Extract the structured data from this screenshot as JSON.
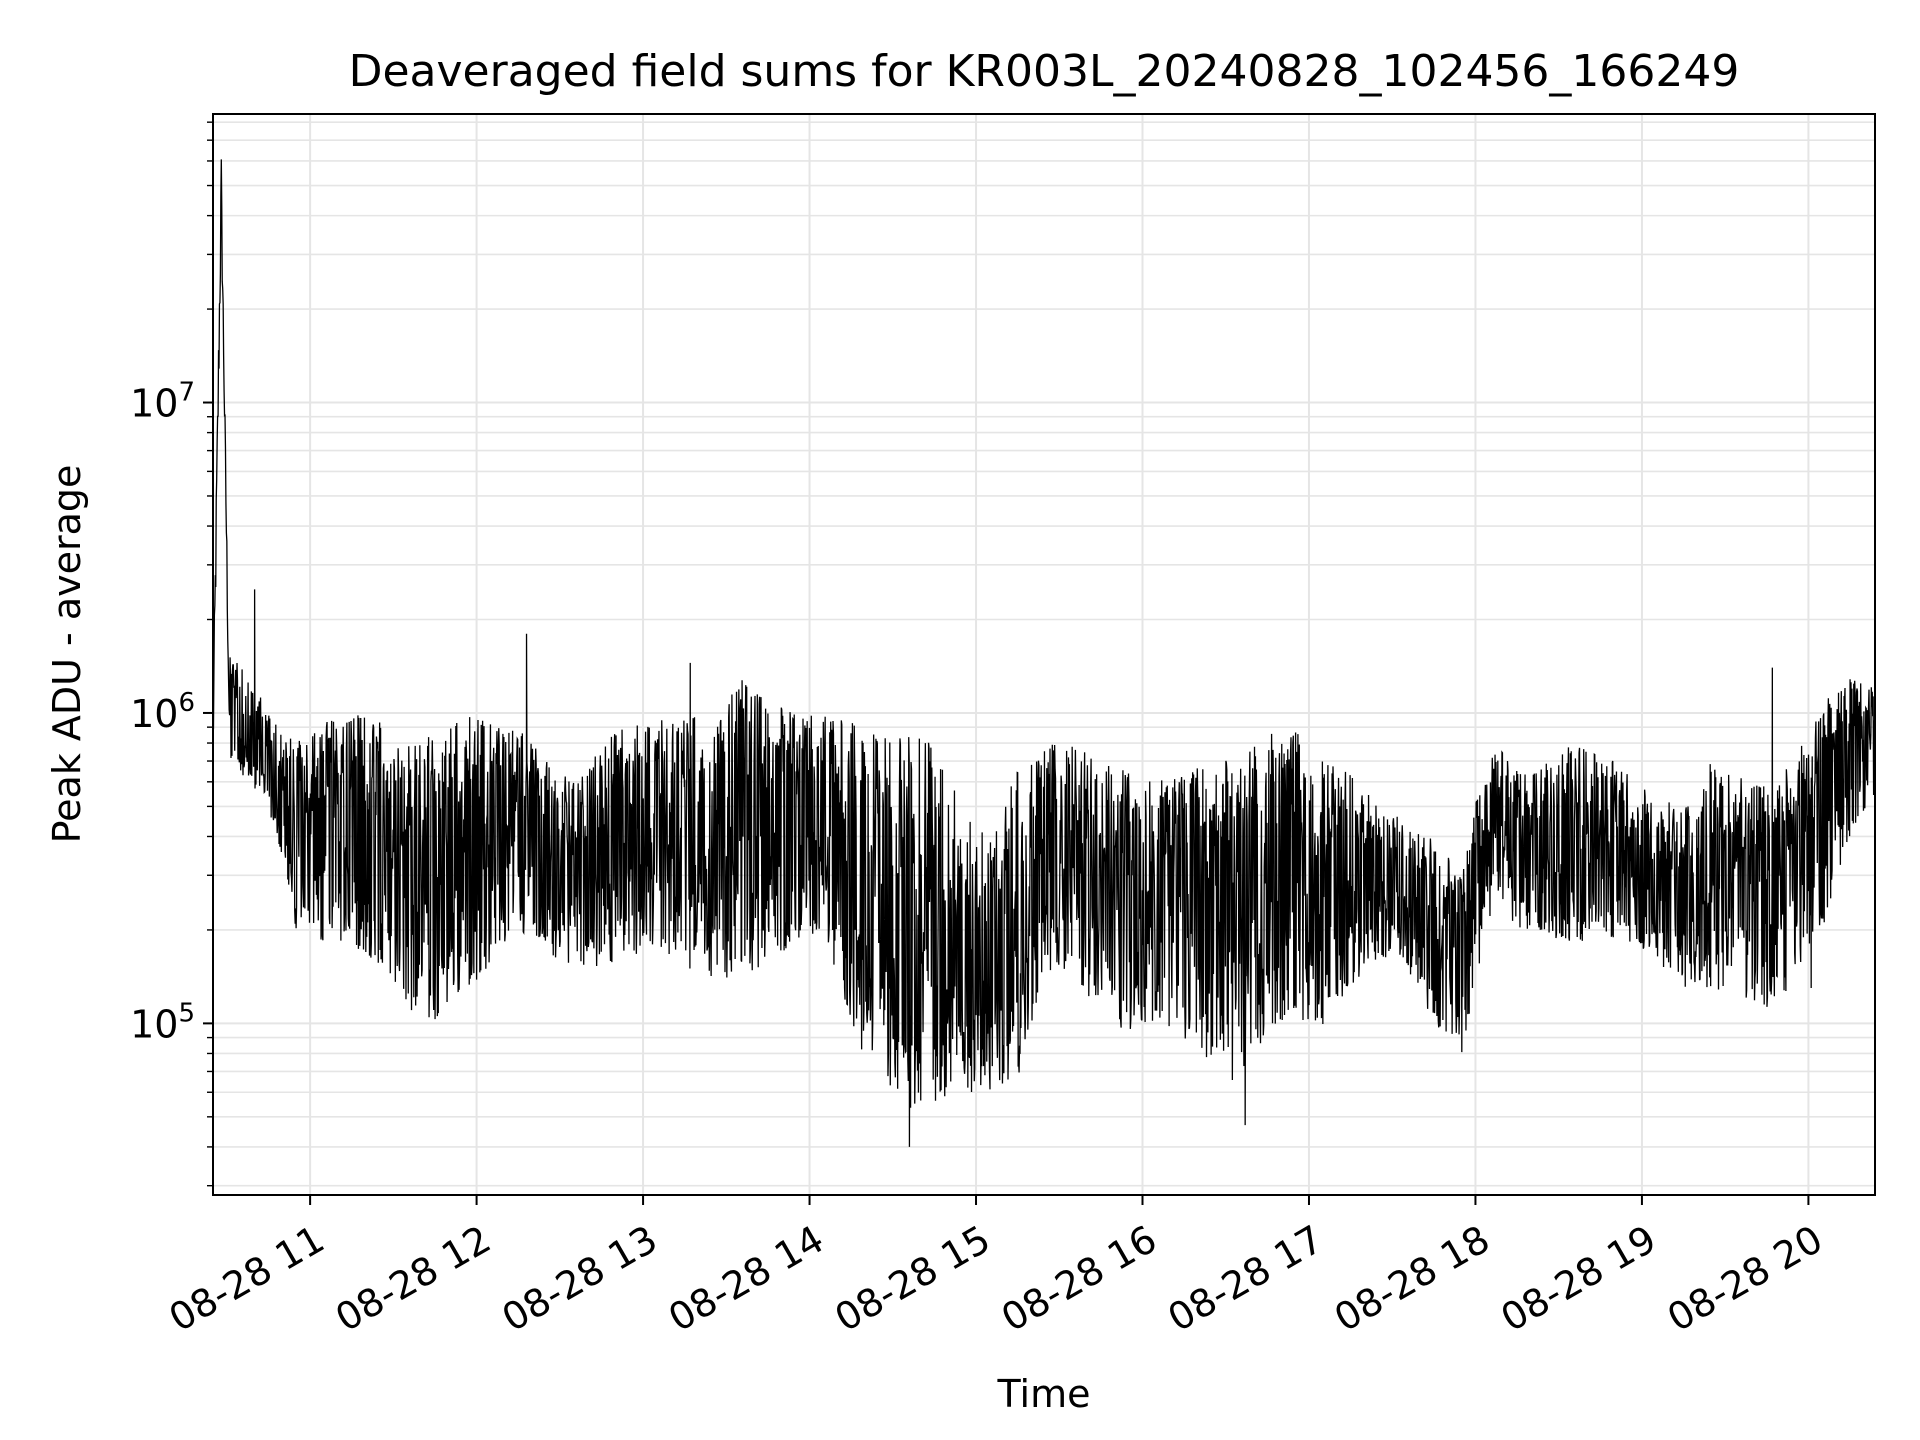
{
  "chart_data": {
    "type": "line",
    "title": "Deaveraged field sums for KR003L_20240828_102456_166249",
    "xlabel": "Time",
    "ylabel": "Peak ADU - average",
    "x_axis": {
      "kind": "datetime",
      "range": [
        "2024-08-28T10:25:00",
        "2024-08-28T20:24:00"
      ],
      "tick_labels": [
        "08-28 11",
        "08-28 12",
        "08-28 13",
        "08-28 14",
        "08-28 15",
        "08-28 16",
        "08-28 17",
        "08-28 18",
        "08-28 19",
        "08-28 20"
      ],
      "tick_rotation_deg": 30
    },
    "y_axis": {
      "scale": "log",
      "range": [
        28000,
        85000000
      ],
      "tick_labels": [
        {
          "value": 100000,
          "base": "10",
          "exp": "5"
        },
        {
          "value": 1000000,
          "base": "10",
          "exp": "6"
        },
        {
          "value": 10000000,
          "base": "10",
          "exp": "7"
        }
      ]
    },
    "grid": true,
    "grid_color": "#e5e5e5",
    "line_color": "#000000",
    "series": [
      {
        "values_note": "",
        "x": [
          "2024-08-28T10:25:00",
          "2024-08-28T10:28:00",
          "2024-08-28T10:31:00",
          "2024-08-28T10:38:00",
          "2024-08-28T10:45:00",
          "2024-08-28T10:55:00",
          "2024-08-28T11:05:00",
          "2024-08-28T11:15:00",
          "2024-08-28T11:25:00",
          "2024-08-28T11:35:00",
          "2024-08-28T11:45:00",
          "2024-08-28T11:55:00",
          "2024-08-28T12:05:00",
          "2024-08-28T12:15:00",
          "2024-08-28T12:25:00",
          "2024-08-28T12:35:00",
          "2024-08-28T12:45:00",
          "2024-08-28T12:55:00",
          "2024-08-28T13:05:00",
          "2024-08-28T13:15:00",
          "2024-08-28T13:25:00",
          "2024-08-28T13:35:00",
          "2024-08-28T13:45:00",
          "2024-08-28T13:55:00",
          "2024-08-28T14:05:00",
          "2024-08-28T14:15:00",
          "2024-08-28T14:25:00",
          "2024-08-28T14:35:00",
          "2024-08-28T14:45:00",
          "2024-08-28T14:55:00",
          "2024-08-28T15:05:00",
          "2024-08-28T15:15:00",
          "2024-08-28T15:25:00",
          "2024-08-28T15:35:00",
          "2024-08-28T15:45:00",
          "2024-08-28T15:55:00",
          "2024-08-28T16:05:00",
          "2024-08-28T16:15:00",
          "2024-08-28T16:25:00",
          "2024-08-28T16:35:00",
          "2024-08-28T16:45:00",
          "2024-08-28T16:55:00",
          "2024-08-28T17:05:00",
          "2024-08-28T17:15:00",
          "2024-08-28T17:25:00",
          "2024-08-28T17:35:00",
          "2024-08-28T17:45:00",
          "2024-08-28T17:55:00",
          "2024-08-28T18:05:00",
          "2024-08-28T18:15:00",
          "2024-08-28T18:25:00",
          "2024-08-28T18:35:00",
          "2024-08-28T18:45:00",
          "2024-08-28T18:55:00",
          "2024-08-28T19:05:00",
          "2024-08-28T19:15:00",
          "2024-08-28T19:25:00",
          "2024-08-28T19:35:00",
          "2024-08-28T19:45:00",
          "2024-08-28T19:55:00",
          "2024-08-28T20:05:00",
          "2024-08-28T20:15:00",
          "2024-08-28T20:24:00"
        ],
        "lo": [
          600000,
          40000000,
          700000,
          600000,
          500000,
          200000,
          180000,
          170000,
          150000,
          110000,
          100000,
          120000,
          150000,
          200000,
          170000,
          150000,
          150000,
          160000,
          180000,
          150000,
          140000,
          130000,
          160000,
          180000,
          200000,
          100000,
          60000,
          50000,
          55000,
          60000,
          60000,
          65000,
          150000,
          140000,
          100000,
          95000,
          100000,
          90000,
          75000,
          60000,
          95000,
          100000,
          90000,
          130000,
          160000,
          150000,
          100000,
          80000,
          220000,
          200000,
          190000,
          180000,
          190000,
          180000,
          160000,
          130000,
          130000,
          120000,
          110000,
          130000,
          200000,
          400000,
          550000
        ],
        "hi": [
          1400000,
          62000000,
          1700000,
          1400000,
          1000000,
          800000,
          950000,
          1000000,
          950000,
          800000,
          850000,
          1000000,
          950000,
          900000,
          700000,
          600000,
          800000,
          950000,
          950000,
          1000000,
          950000,
          1300000,
          1100000,
          1000000,
          1000000,
          950000,
          850000,
          850000,
          900000,
          500000,
          400000,
          650000,
          800000,
          800000,
          700000,
          650000,
          600000,
          650000,
          700000,
          750000,
          850000,
          900000,
          700000,
          650000,
          500000,
          450000,
          400000,
          300000,
          850000,
          650000,
          700000,
          800000,
          750000,
          650000,
          550000,
          500000,
          700000,
          650000,
          600000,
          700000,
          1100000,
          1300000,
          1200000
        ],
        "mid": [
          800000,
          50000000,
          900000,
          800000,
          700000,
          400000,
          450000,
          450000,
          400000,
          350000,
          350000,
          450000,
          400000,
          400000,
          320000,
          300000,
          350000,
          450000,
          450000,
          450000,
          420000,
          480000,
          500000,
          450000,
          450000,
          350000,
          220000,
          200000,
          200000,
          150000,
          130000,
          180000,
          350000,
          350000,
          300000,
          280000,
          250000,
          270000,
          280000,
          250000,
          300000,
          320000,
          280000,
          300000,
          280000,
          230000,
          200000,
          150000,
          450000,
          400000,
          400000,
          400000,
          380000,
          350000,
          300000,
          250000,
          300000,
          280000,
          260000,
          300000,
          500000,
          700000,
          800000
        ],
        "spikes": [
          {
            "x": "2024-08-28T10:40:00",
            "y": 2500000
          },
          {
            "x": "2024-08-28T12:18:00",
            "y": 1800000
          },
          {
            "x": "2024-08-28T13:17:00",
            "y": 1450000
          },
          {
            "x": "2024-08-28T16:37:00",
            "y": 47000
          },
          {
            "x": "2024-08-28T14:36:00",
            "y": 40000
          },
          {
            "x": "2024-08-28T19:47:00",
            "y": 1400000
          },
          {
            "x": "2024-08-28T20:01:00",
            "y": 130000
          }
        ]
      }
    ]
  }
}
